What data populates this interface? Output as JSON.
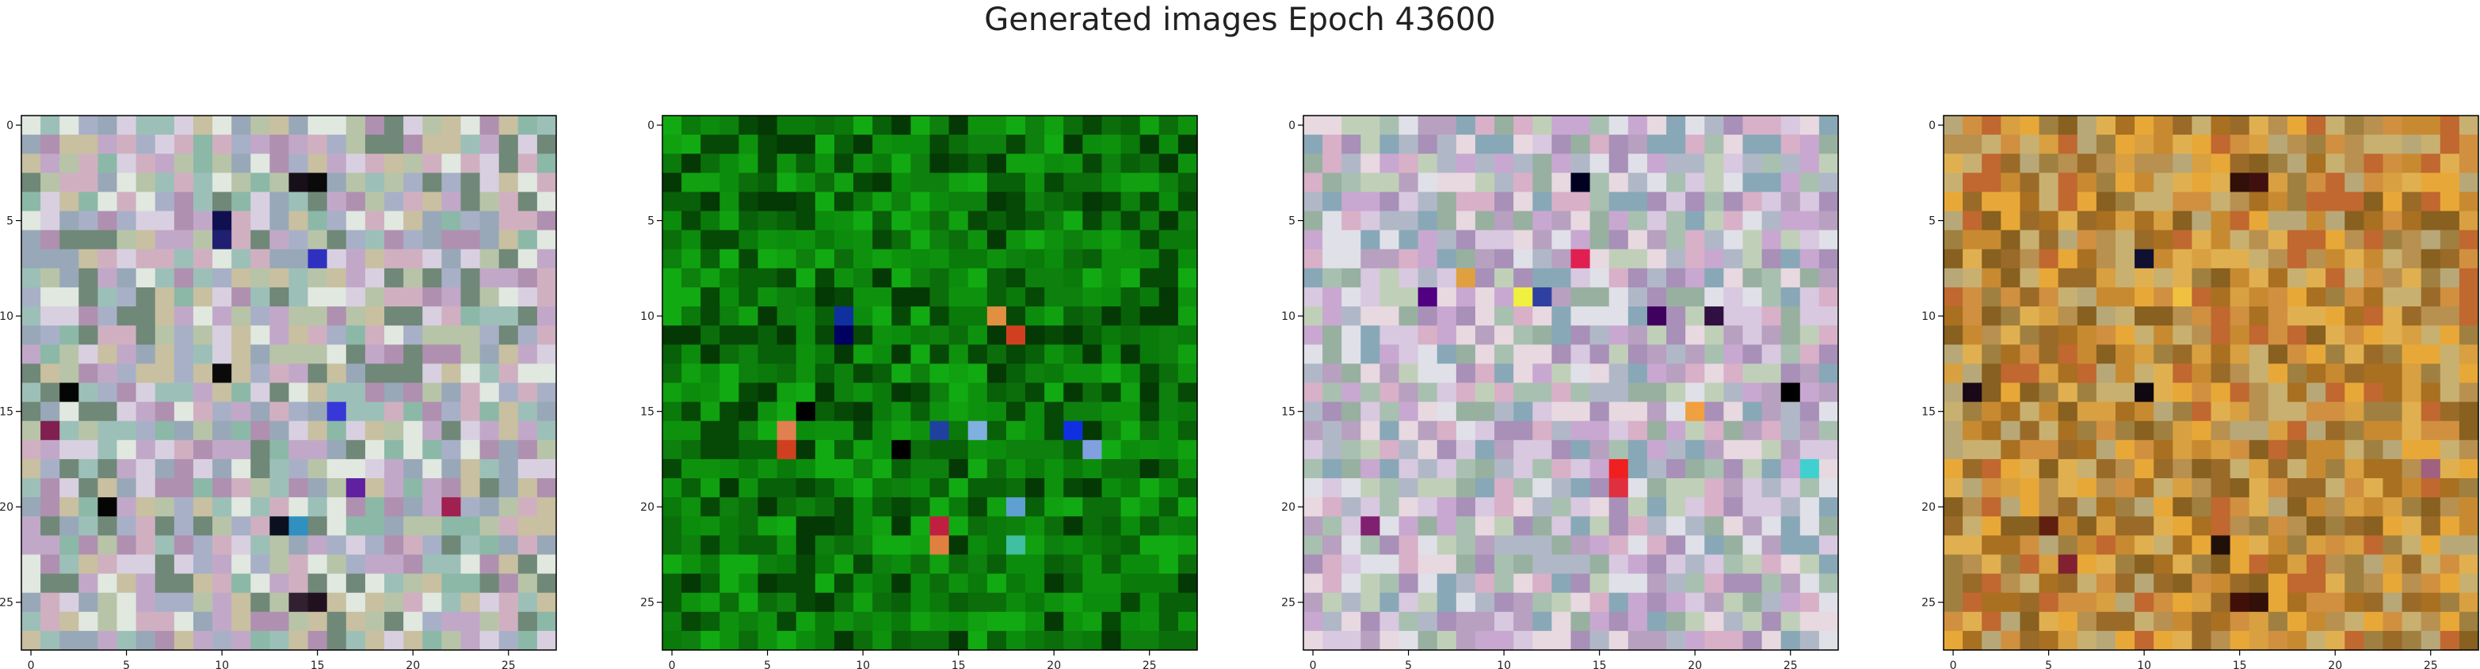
{
  "figure": {
    "title": "Generated images Epoch 43600"
  },
  "chart_data": [
    {
      "type": "heatmap",
      "title": "",
      "xlabel": "",
      "ylabel": "",
      "grid_size": 28,
      "xlim": [
        -0.5,
        27.5
      ],
      "ylim": [
        27.5,
        -0.5
      ],
      "x_ticks": [
        0,
        5,
        10,
        15,
        20,
        25
      ],
      "y_ticks": [
        0,
        5,
        10,
        15,
        20,
        25
      ],
      "grid": false,
      "palette": [
        "#b8c4a8",
        "#c2a8c8",
        "#9cc0b8",
        "#d8d0e0",
        "#a8b0c8",
        "#c8c0a0",
        "#8cb8a8",
        "#d0b0c0",
        "#e0e8e0",
        "#98a8b8",
        "#b090b0",
        "#708878"
      ],
      "accents": [
        {
          "x": 10,
          "y": 5,
          "color": "#101050"
        },
        {
          "x": 10,
          "y": 6,
          "color": "#202070"
        },
        {
          "x": 14,
          "y": 3,
          "color": "#181018"
        },
        {
          "x": 15,
          "y": 3,
          "color": "#0a0a0a"
        },
        {
          "x": 2,
          "y": 14,
          "color": "#050505"
        },
        {
          "x": 10,
          "y": 13,
          "color": "#0a0a0a"
        },
        {
          "x": 15,
          "y": 7,
          "color": "#3030c0"
        },
        {
          "x": 16,
          "y": 15,
          "color": "#3838d8"
        },
        {
          "x": 4,
          "y": 20,
          "color": "#050505"
        },
        {
          "x": 13,
          "y": 21,
          "color": "#0a1020"
        },
        {
          "x": 14,
          "y": 25,
          "color": "#302030"
        },
        {
          "x": 15,
          "y": 25,
          "color": "#201020"
        },
        {
          "x": 22,
          "y": 20,
          "color": "#a02050"
        },
        {
          "x": 17,
          "y": 19,
          "color": "#6020a0"
        },
        {
          "x": 14,
          "y": 21,
          "color": "#3090c0"
        },
        {
          "x": 1,
          "y": 16,
          "color": "#802050"
        }
      ]
    },
    {
      "type": "heatmap",
      "title": "",
      "xlabel": "",
      "ylabel": "",
      "grid_size": 28,
      "xlim": [
        -0.5,
        27.5
      ],
      "ylim": [
        27.5,
        -0.5
      ],
      "x_ticks": [
        0,
        5,
        10,
        15,
        20,
        25
      ],
      "y_ticks": [
        0,
        5,
        10,
        15,
        20,
        25
      ],
      "grid": false,
      "palette": [
        "#0a7a0a",
        "#0c8c0c",
        "#086008",
        "#10a010",
        "#064806",
        "#0e920e",
        "#0b6e0b",
        "#12aa12",
        "#043804",
        "#0d800d"
      ],
      "accents": [
        {
          "x": 9,
          "y": 10,
          "color": "#1030a0"
        },
        {
          "x": 9,
          "y": 11,
          "color": "#000060"
        },
        {
          "x": 17,
          "y": 10,
          "color": "#e09040"
        },
        {
          "x": 18,
          "y": 11,
          "color": "#d04020"
        },
        {
          "x": 6,
          "y": 16,
          "color": "#e08050"
        },
        {
          "x": 6,
          "y": 17,
          "color": "#d04020"
        },
        {
          "x": 14,
          "y": 16,
          "color": "#2040a0"
        },
        {
          "x": 16,
          "y": 16,
          "color": "#80b0e0"
        },
        {
          "x": 21,
          "y": 16,
          "color": "#1030e0"
        },
        {
          "x": 22,
          "y": 17,
          "color": "#80a0e0"
        },
        {
          "x": 14,
          "y": 21,
          "color": "#c02040"
        },
        {
          "x": 14,
          "y": 22,
          "color": "#e08040"
        },
        {
          "x": 18,
          "y": 22,
          "color": "#40c0a0"
        },
        {
          "x": 18,
          "y": 20,
          "color": "#60a0d0"
        },
        {
          "x": 7,
          "y": 15,
          "color": "#000000"
        },
        {
          "x": 12,
          "y": 17,
          "color": "#000000"
        }
      ]
    },
    {
      "type": "heatmap",
      "title": "",
      "xlabel": "",
      "ylabel": "",
      "grid_size": 28,
      "xlim": [
        -0.5,
        27.5
      ],
      "ylim": [
        27.5,
        -0.5
      ],
      "x_ticks": [
        0,
        5,
        10,
        15,
        20,
        25
      ],
      "y_ticks": [
        0,
        5,
        10,
        15,
        20,
        25
      ],
      "grid": false,
      "palette": [
        "#c8a8d0",
        "#a8c0b0",
        "#d8c8e0",
        "#b0b8c8",
        "#e0e0e8",
        "#a890b8",
        "#c0d0b8",
        "#d8b0c8",
        "#98b0a0",
        "#e8d8e0",
        "#b8a0c0",
        "#88a8b8"
      ],
      "accents": [
        {
          "x": 14,
          "y": 3,
          "color": "#000020"
        },
        {
          "x": 6,
          "y": 9,
          "color": "#500080"
        },
        {
          "x": 11,
          "y": 9,
          "color": "#f0f040"
        },
        {
          "x": 12,
          "y": 9,
          "color": "#3040a0"
        },
        {
          "x": 18,
          "y": 10,
          "color": "#400060"
        },
        {
          "x": 25,
          "y": 14,
          "color": "#000000"
        },
        {
          "x": 16,
          "y": 18,
          "color": "#f02020"
        },
        {
          "x": 16,
          "y": 19,
          "color": "#e03040"
        },
        {
          "x": 26,
          "y": 18,
          "color": "#40d0d0"
        },
        {
          "x": 20,
          "y": 15,
          "color": "#f0a040"
        },
        {
          "x": 8,
          "y": 8,
          "color": "#e0a040"
        },
        {
          "x": 14,
          "y": 7,
          "color": "#e02050"
        },
        {
          "x": 3,
          "y": 21,
          "color": "#802070"
        },
        {
          "x": 21,
          "y": 10,
          "color": "#301040"
        }
      ]
    },
    {
      "type": "heatmap",
      "title": "",
      "xlabel": "",
      "ylabel": "",
      "grid_size": 28,
      "xlim": [
        -0.5,
        27.5
      ],
      "ylim": [
        27.5,
        -0.5
      ],
      "x_ticks": [
        0,
        5,
        10,
        15,
        20,
        25
      ],
      "y_ticks": [
        0,
        5,
        10,
        15,
        20,
        25
      ],
      "grid": false,
      "palette": [
        "#c88a30",
        "#d8a040",
        "#a87020",
        "#e0b050",
        "#9a6a28",
        "#c8b070",
        "#b89050",
        "#d09040",
        "#886020",
        "#e8a838",
        "#b8a878",
        "#a08040",
        "#c06830"
      ],
      "accents": [
        {
          "x": 10,
          "y": 7,
          "color": "#101030"
        },
        {
          "x": 15,
          "y": 3,
          "color": "#301008"
        },
        {
          "x": 16,
          "y": 3,
          "color": "#401010"
        },
        {
          "x": 1,
          "y": 14,
          "color": "#180818"
        },
        {
          "x": 10,
          "y": 14,
          "color": "#100810"
        },
        {
          "x": 15,
          "y": 25,
          "color": "#401008"
        },
        {
          "x": 16,
          "y": 25,
          "color": "#301008"
        },
        {
          "x": 14,
          "y": 22,
          "color": "#201008"
        },
        {
          "x": 25,
          "y": 18,
          "color": "#a06080"
        },
        {
          "x": 5,
          "y": 21,
          "color": "#602010"
        },
        {
          "x": 12,
          "y": 9,
          "color": "#f0c040"
        },
        {
          "x": 6,
          "y": 23,
          "color": "#802030"
        }
      ]
    }
  ]
}
